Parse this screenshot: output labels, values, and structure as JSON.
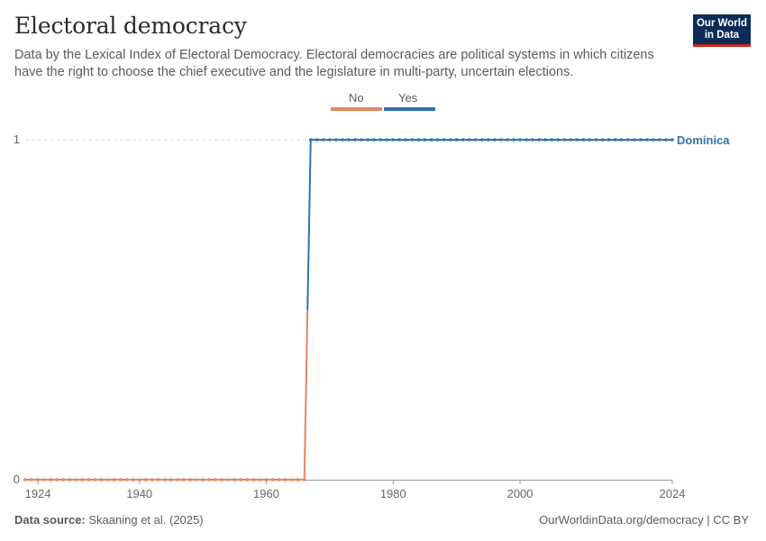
{
  "header": {
    "title": "Electoral democracy",
    "subtitle": "Data by the Lexical Index of Electoral Democracy. Electoral democracies are political systems in which citizens have the right to choose the chief executive and the legislature in multi-party, uncertain elections."
  },
  "logo": {
    "line1": "Our World",
    "line2": "in Data"
  },
  "legend": [
    {
      "label": "No",
      "color": "#e6865e"
    },
    {
      "label": "Yes",
      "color": "#2f74ad"
    }
  ],
  "footer": {
    "source_label": "Data source:",
    "source_text": "Skaaning et al. (2025)",
    "url_text": "OurWorldinData.org/democracy | CC BY"
  },
  "colors": {
    "no": "#e6865e",
    "yes": "#2f74ad",
    "axis": "#999999",
    "grid": "#dddddd",
    "tick_text": "#666666"
  },
  "chart_data": {
    "type": "line",
    "title": "Electoral democracy",
    "xlabel": "",
    "ylabel": "",
    "xlim": [
      1922,
      2024
    ],
    "ylim": [
      0,
      1
    ],
    "x_ticks": [
      1924,
      1940,
      1960,
      1980,
      2000,
      2024
    ],
    "y_ticks": [
      0,
      1
    ],
    "grid": "horizontal dashed at y=1",
    "series": [
      {
        "name": "Dominica",
        "start_year": 1922,
        "end_year": 2024,
        "switch_year": 1967,
        "value_before": 0,
        "value_after": 1
      }
    ]
  }
}
